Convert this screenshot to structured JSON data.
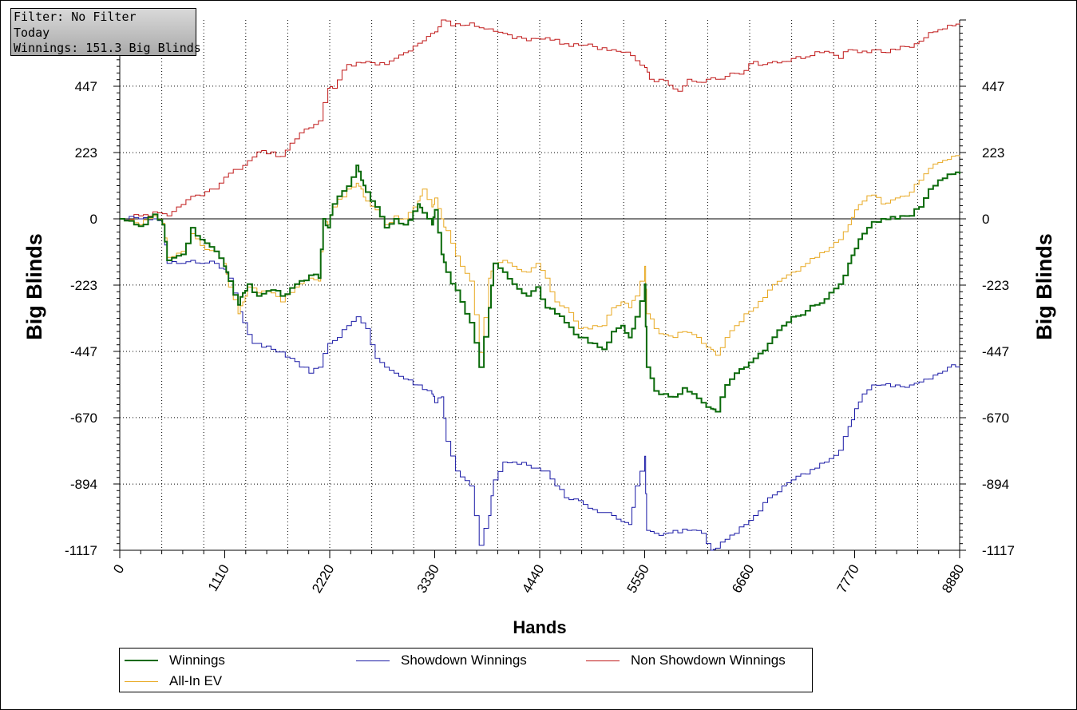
{
  "filter_box": {
    "line1": "Filter: No Filter",
    "line2": "Today",
    "line3": "Winnings: 151.3 Big Blinds"
  },
  "colors": {
    "winnings": "#0a6a0a",
    "showdown": "#1a1aa6",
    "non_showdown": "#c01818",
    "allin_ev": "#e8a820"
  },
  "chart_data": {
    "type": "line",
    "title": "",
    "xlabel": "Hands",
    "ylabel": "Big Blinds",
    "xlim": [
      0,
      8880
    ],
    "ylim": [
      -1117,
      670
    ],
    "x_ticks": [
      "0",
      "1110",
      "2220",
      "3330",
      "4440",
      "5550",
      "6660",
      "7770",
      "8880"
    ],
    "y_ticks": [
      "447",
      "223",
      "0",
      "-223",
      "-447",
      "-670",
      "-894",
      "-1117"
    ],
    "y_tick_values": [
      447,
      223,
      0,
      -223,
      -447,
      -670,
      -894,
      -1117
    ],
    "x_tick_values": [
      0,
      1110,
      2220,
      3330,
      4440,
      5550,
      6660,
      7770,
      8880
    ],
    "grid": true,
    "legend_position": "bottom",
    "series": [
      {
        "name": "Winnings",
        "color_key": "winnings",
        "x": [
          0,
          200,
          350,
          450,
          500,
          650,
          750,
          850,
          1000,
          1100,
          1150,
          1250,
          1300,
          1350,
          1450,
          1600,
          1700,
          1850,
          2000,
          2100,
          2150,
          2200,
          2250,
          2400,
          2500,
          2550,
          2600,
          2700,
          2800,
          2900,
          3000,
          3150,
          3200,
          3300,
          3330,
          3400,
          3450,
          3600,
          3700,
          3800,
          3900,
          3950,
          4050,
          4150,
          4300,
          4400,
          4500,
          4600,
          4700,
          4850,
          5000,
          5100,
          5200,
          5300,
          5380,
          5450,
          5550,
          5570,
          5650,
          5750,
          5850,
          5950,
          6050,
          6150,
          6250,
          6300,
          6400,
          6500,
          6600,
          6700,
          6850,
          7000,
          7100,
          7250,
          7350,
          7450,
          7600,
          7700,
          7770,
          7850,
          7950,
          8050,
          8200,
          8350,
          8450,
          8550,
          8650,
          8750,
          8880
        ],
        "y": [
          0,
          -25,
          15,
          -20,
          -140,
          -120,
          -30,
          -70,
          -110,
          -160,
          -210,
          -290,
          -250,
          -220,
          -260,
          -240,
          -260,
          -220,
          -190,
          -200,
          0,
          -30,
          50,
          110,
          180,
          130,
          90,
          40,
          -30,
          0,
          -20,
          50,
          20,
          -20,
          30,
          -120,
          -180,
          -280,
          -350,
          -500,
          -300,
          -150,
          -180,
          -220,
          -260,
          -230,
          -300,
          -320,
          -350,
          -400,
          -420,
          -440,
          -380,
          -360,
          -400,
          -330,
          -220,
          -500,
          -580,
          -590,
          -600,
          -570,
          -590,
          -620,
          -640,
          -650,
          -560,
          -520,
          -500,
          -470,
          -420,
          -360,
          -330,
          -310,
          -290,
          -270,
          -220,
          -150,
          -100,
          -50,
          -10,
          0,
          0,
          10,
          40,
          100,
          130,
          150,
          151
        ]
      },
      {
        "name": "All-In EV",
        "color_key": "allin_ev",
        "x": [
          0,
          200,
          350,
          450,
          500,
          650,
          750,
          850,
          1000,
          1100,
          1150,
          1250,
          1300,
          1350,
          1450,
          1600,
          1700,
          1850,
          2000,
          2100,
          2150,
          2200,
          2250,
          2400,
          2500,
          2550,
          2600,
          2700,
          2800,
          2900,
          3000,
          3150,
          3200,
          3300,
          3330,
          3400,
          3450,
          3600,
          3700,
          3800,
          3900,
          3950,
          4050,
          4150,
          4300,
          4400,
          4500,
          4600,
          4700,
          4850,
          5000,
          5100,
          5200,
          5300,
          5380,
          5450,
          5550,
          5570,
          5650,
          5750,
          5850,
          5950,
          6050,
          6150,
          6250,
          6300,
          6400,
          6500,
          6600,
          6700,
          6850,
          7000,
          7100,
          7250,
          7350,
          7450,
          7600,
          7700,
          7770,
          7850,
          7950,
          8050,
          8200,
          8350,
          8450,
          8550,
          8650,
          8750,
          8880
        ],
        "y": [
          0,
          -20,
          10,
          -15,
          -130,
          -110,
          -50,
          -90,
          -110,
          -150,
          -230,
          -320,
          -280,
          -230,
          -250,
          -250,
          -280,
          -230,
          -200,
          -210,
          0,
          -20,
          40,
          100,
          120,
          100,
          60,
          30,
          -20,
          10,
          0,
          60,
          100,
          40,
          70,
          0,
          -40,
          -160,
          -210,
          -450,
          -200,
          -150,
          -140,
          -160,
          -180,
          -150,
          -200,
          -280,
          -300,
          -370,
          -360,
          -360,
          -300,
          -280,
          -300,
          -260,
          -160,
          -320,
          -370,
          -390,
          -400,
          -380,
          -390,
          -420,
          -440,
          -460,
          -400,
          -360,
          -320,
          -300,
          -240,
          -200,
          -180,
          -150,
          -130,
          -110,
          -70,
          -20,
          30,
          60,
          80,
          50,
          70,
          90,
          130,
          170,
          190,
          200,
          210
        ]
      },
      {
        "name": "Showdown Winnings",
        "color_key": "showdown",
        "x": [
          0,
          200,
          350,
          450,
          500,
          650,
          750,
          850,
          1000,
          1100,
          1150,
          1250,
          1300,
          1400,
          1600,
          1800,
          2000,
          2100,
          2200,
          2300,
          2400,
          2500,
          2600,
          2700,
          2800,
          2900,
          3000,
          3150,
          3300,
          3330,
          3400,
          3450,
          3550,
          3700,
          3800,
          3900,
          3950,
          4050,
          4150,
          4300,
          4400,
          4500,
          4600,
          4700,
          4850,
          5000,
          5100,
          5200,
          5300,
          5380,
          5450,
          5550,
          5570,
          5650,
          5750,
          5850,
          6000,
          6150,
          6250,
          6300,
          6400,
          6500,
          6600,
          6700,
          6850,
          7000,
          7100,
          7250,
          7350,
          7450,
          7600,
          7700,
          7770,
          7850,
          7950,
          8050,
          8200,
          8350,
          8450,
          8550,
          8650,
          8750,
          8880
        ],
        "y": [
          0,
          0,
          0,
          -20,
          -150,
          -150,
          -140,
          -150,
          -150,
          -170,
          -200,
          -290,
          -350,
          -420,
          -440,
          -470,
          -520,
          -500,
          -420,
          -400,
          -360,
          -330,
          -370,
          -470,
          -500,
          -520,
          -540,
          -560,
          -590,
          -620,
          -600,
          -750,
          -850,
          -900,
          -1100,
          -1000,
          -880,
          -820,
          -820,
          -830,
          -840,
          -850,
          -900,
          -940,
          -950,
          -980,
          -990,
          -1000,
          -1020,
          -1030,
          -900,
          -800,
          -1050,
          -1060,
          -1060,
          -1050,
          -1050,
          -1060,
          -1117,
          -1110,
          -1080,
          -1060,
          -1030,
          -1000,
          -940,
          -900,
          -880,
          -860,
          -840,
          -820,
          -780,
          -700,
          -640,
          -590,
          -560,
          -560,
          -560,
          -560,
          -550,
          -540,
          -520,
          -500,
          -497
        ]
      },
      {
        "name": "Non Showdown Winnings",
        "color_key": "non_showdown",
        "x": [
          0,
          200,
          400,
          500,
          600,
          800,
          1000,
          1100,
          1300,
          1500,
          1700,
          1900,
          2100,
          2200,
          2250,
          2400,
          2600,
          2800,
          3000,
          3200,
          3330,
          3400,
          3500,
          3700,
          3900,
          4100,
          4300,
          4500,
          4700,
          5000,
          5200,
          5400,
          5550,
          5600,
          5700,
          5800,
          5900,
          6000,
          6100,
          6200,
          6300,
          6400,
          6500,
          6600,
          6700,
          6800,
          6900,
          7000,
          7100,
          7200,
          7300,
          7400,
          7500,
          7600,
          7700,
          7800,
          7900,
          8000,
          8100,
          8200,
          8300,
          8400,
          8500,
          8600,
          8700,
          8800,
          8880
        ],
        "y": [
          0,
          10,
          20,
          10,
          40,
          80,
          100,
          140,
          180,
          230,
          210,
          290,
          330,
          440,
          440,
          520,
          530,
          520,
          560,
          600,
          630,
          670,
          650,
          660,
          640,
          620,
          600,
          610,
          590,
          580,
          570,
          550,
          510,
          470,
          470,
          450,
          430,
          470,
          460,
          470,
          470,
          480,
          490,
          500,
          530,
          520,
          530,
          530,
          540,
          540,
          550,
          560,
          560,
          540,
          570,
          560,
          560,
          570,
          560,
          570,
          580,
          590,
          610,
          630,
          640,
          650,
          660
        ]
      }
    ]
  },
  "legend": {
    "winnings": "Winnings",
    "showdown": "Showdown Winnings",
    "non_showdown": "Non Showdown Winnings",
    "allin_ev": "All-In EV"
  }
}
